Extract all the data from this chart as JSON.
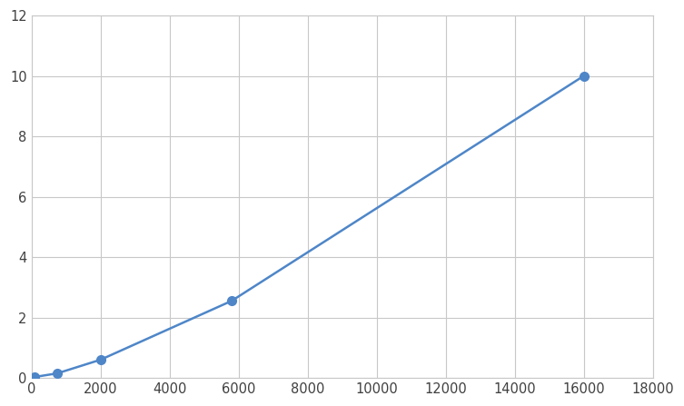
{
  "x": [
    0,
    94,
    750,
    2000,
    5800,
    16000
  ],
  "y": [
    0.0,
    0.03,
    0.15,
    0.6,
    2.55,
    10.0
  ],
  "line_color": "#4e86c8",
  "marker_color": "#4e86c8",
  "marker_size": 7,
  "line_width": 1.8,
  "xlim": [
    0,
    18000
  ],
  "ylim": [
    0,
    12
  ],
  "xticks": [
    0,
    2000,
    4000,
    6000,
    8000,
    10000,
    12000,
    14000,
    16000,
    18000
  ],
  "yticks": [
    0,
    2,
    4,
    6,
    8,
    10,
    12
  ],
  "grid_color": "#C8C8C8",
  "background_color": "#FFFFFF",
  "fig_background": "#FFFFFF",
  "tick_label_color": "#404040",
  "tick_label_size": 10.5
}
